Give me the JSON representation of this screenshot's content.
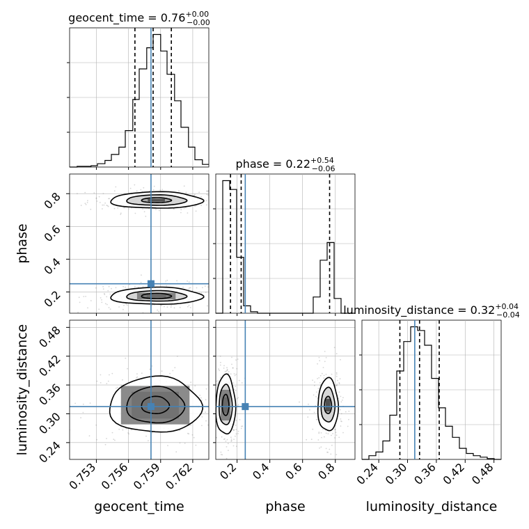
{
  "chart_data": {
    "type": "corner",
    "parameters": [
      "geocent_time",
      "phase",
      "luminosity_distance"
    ],
    "truth": {
      "geocent_time": 0.7581,
      "phase": 0.25,
      "luminosity_distance": 0.315
    },
    "titles": [
      {
        "name": "geocent_time",
        "value": "0.76",
        "plus": "+0.00",
        "minus": "−0.00"
      },
      {
        "name": "phase",
        "value": "0.22",
        "plus": "+0.54",
        "minus": "−0.06"
      },
      {
        "name": "luminosity_distance",
        "value": "0.32",
        "plus": "+0.04",
        "minus": "−0.04"
      }
    ],
    "ranges": {
      "geocent_time": [
        0.7505,
        0.7635
      ],
      "phase": [
        0.07,
        0.92
      ],
      "luminosity_distance": [
        0.205,
        0.495
      ]
    },
    "ticks": {
      "geocent_time": [
        "0.753",
        "0.756",
        "0.759",
        "0.762"
      ],
      "phase": [
        "0.2",
        "0.4",
        "0.6",
        "0.8"
      ],
      "luminosity_distance": [
        "0.24",
        "0.30",
        "0.36",
        "0.42",
        "0.48"
      ]
    },
    "quantiles": {
      "geocent_time": [
        0.7566,
        0.7583,
        0.76
      ],
      "phase": [
        0.16,
        0.225,
        0.765
      ],
      "luminosity_distance": [
        0.284,
        0.325,
        0.366
      ]
    },
    "histograms": {
      "geocent_time": {
        "edges": [
          0.7505,
          0.7512,
          0.7518,
          0.7525,
          0.7531,
          0.7538,
          0.7544,
          0.7551,
          0.7557,
          0.7564,
          0.757,
          0.7577,
          0.7583,
          0.759,
          0.7596,
          0.7603,
          0.7609,
          0.7616,
          0.7622,
          0.7629,
          0.7635
        ],
        "counts": [
          0,
          1,
          1,
          2,
          5,
          10,
          19,
          30,
          55,
          102,
          148,
          180,
          200,
          175,
          140,
          100,
          60,
          30,
          11,
          4
        ]
      },
      "phase": {
        "edges": [
          0.07,
          0.1125,
          0.155,
          0.1975,
          0.24,
          0.2825,
          0.325,
          0.3675,
          0.41,
          0.4525,
          0.495,
          0.5375,
          0.58,
          0.6225,
          0.665,
          0.7075,
          0.75,
          0.7925,
          0.835,
          0.8775,
          0.92
        ],
        "counts": [
          0,
          450,
          420,
          190,
          25,
          5,
          0,
          0,
          0,
          0,
          0,
          0,
          0,
          0,
          55,
          180,
          240,
          50,
          0,
          0
        ]
      },
      "luminosity_distance": {
        "edges": [
          0.205,
          0.2195,
          0.234,
          0.2485,
          0.263,
          0.2775,
          0.292,
          0.3065,
          0.321,
          0.3355,
          0.35,
          0.3645,
          0.379,
          0.3935,
          0.408,
          0.4225,
          0.437,
          0.4515,
          0.466,
          0.4805,
          0.495
        ],
        "counts": [
          0,
          5,
          10,
          25,
          60,
          120,
          160,
          180,
          175,
          155,
          110,
          70,
          45,
          30,
          15,
          8,
          5,
          3,
          1,
          0
        ]
      }
    },
    "contours_2d": [
      {
        "x": "geocent_time",
        "y": "phase",
        "modes": [
          {
            "cx": 0.7586,
            "cy": 0.76,
            "levels": [
              [
                0.0014,
                0.015
              ],
              [
                0.0028,
                0.032
              ],
              [
                0.0043,
                0.05
              ]
            ],
            "fill": [
              [
                0.0008,
                0.008
              ]
            ]
          },
          {
            "cx": 0.7586,
            "cy": 0.175,
            "levels": [
              [
                0.0014,
                0.016
              ],
              [
                0.0028,
                0.032
              ],
              [
                0.0043,
                0.052
              ]
            ],
            "fill": [
              [
                0.0009,
                0.01
              ],
              [
                0.0018,
                0.02
              ]
            ]
          }
        ]
      },
      {
        "x": "geocent_time",
        "y": "luminosity_distance",
        "modes": [
          {
            "cx": 0.7585,
            "cy": 0.318,
            "levels": [
              [
                0.0013,
                0.018
              ],
              [
                0.0027,
                0.038
              ],
              [
                0.0043,
                0.058
              ]
            ],
            "fill": [
              [
                0.001,
                0.013
              ],
              [
                0.0022,
                0.028
              ],
              [
                0.0032,
                0.04
              ]
            ]
          }
        ]
      },
      {
        "x": "phase",
        "y": "luminosity_distance",
        "modes": [
          {
            "cx": 0.13,
            "cy": 0.318,
            "levels": [
              [
                0.02,
                0.022
              ],
              [
                0.04,
                0.042
              ],
              [
                0.06,
                0.062
              ]
            ],
            "fill": [
              [
                0.014,
                0.016
              ],
              [
                0.03,
                0.032
              ]
            ]
          },
          {
            "cx": 0.755,
            "cy": 0.318,
            "levels": [
              [
                0.022,
                0.018
              ],
              [
                0.042,
                0.036
              ],
              [
                0.062,
                0.055
              ]
            ],
            "fill": [
              [
                0.015,
                0.013
              ]
            ]
          }
        ]
      }
    ]
  }
}
